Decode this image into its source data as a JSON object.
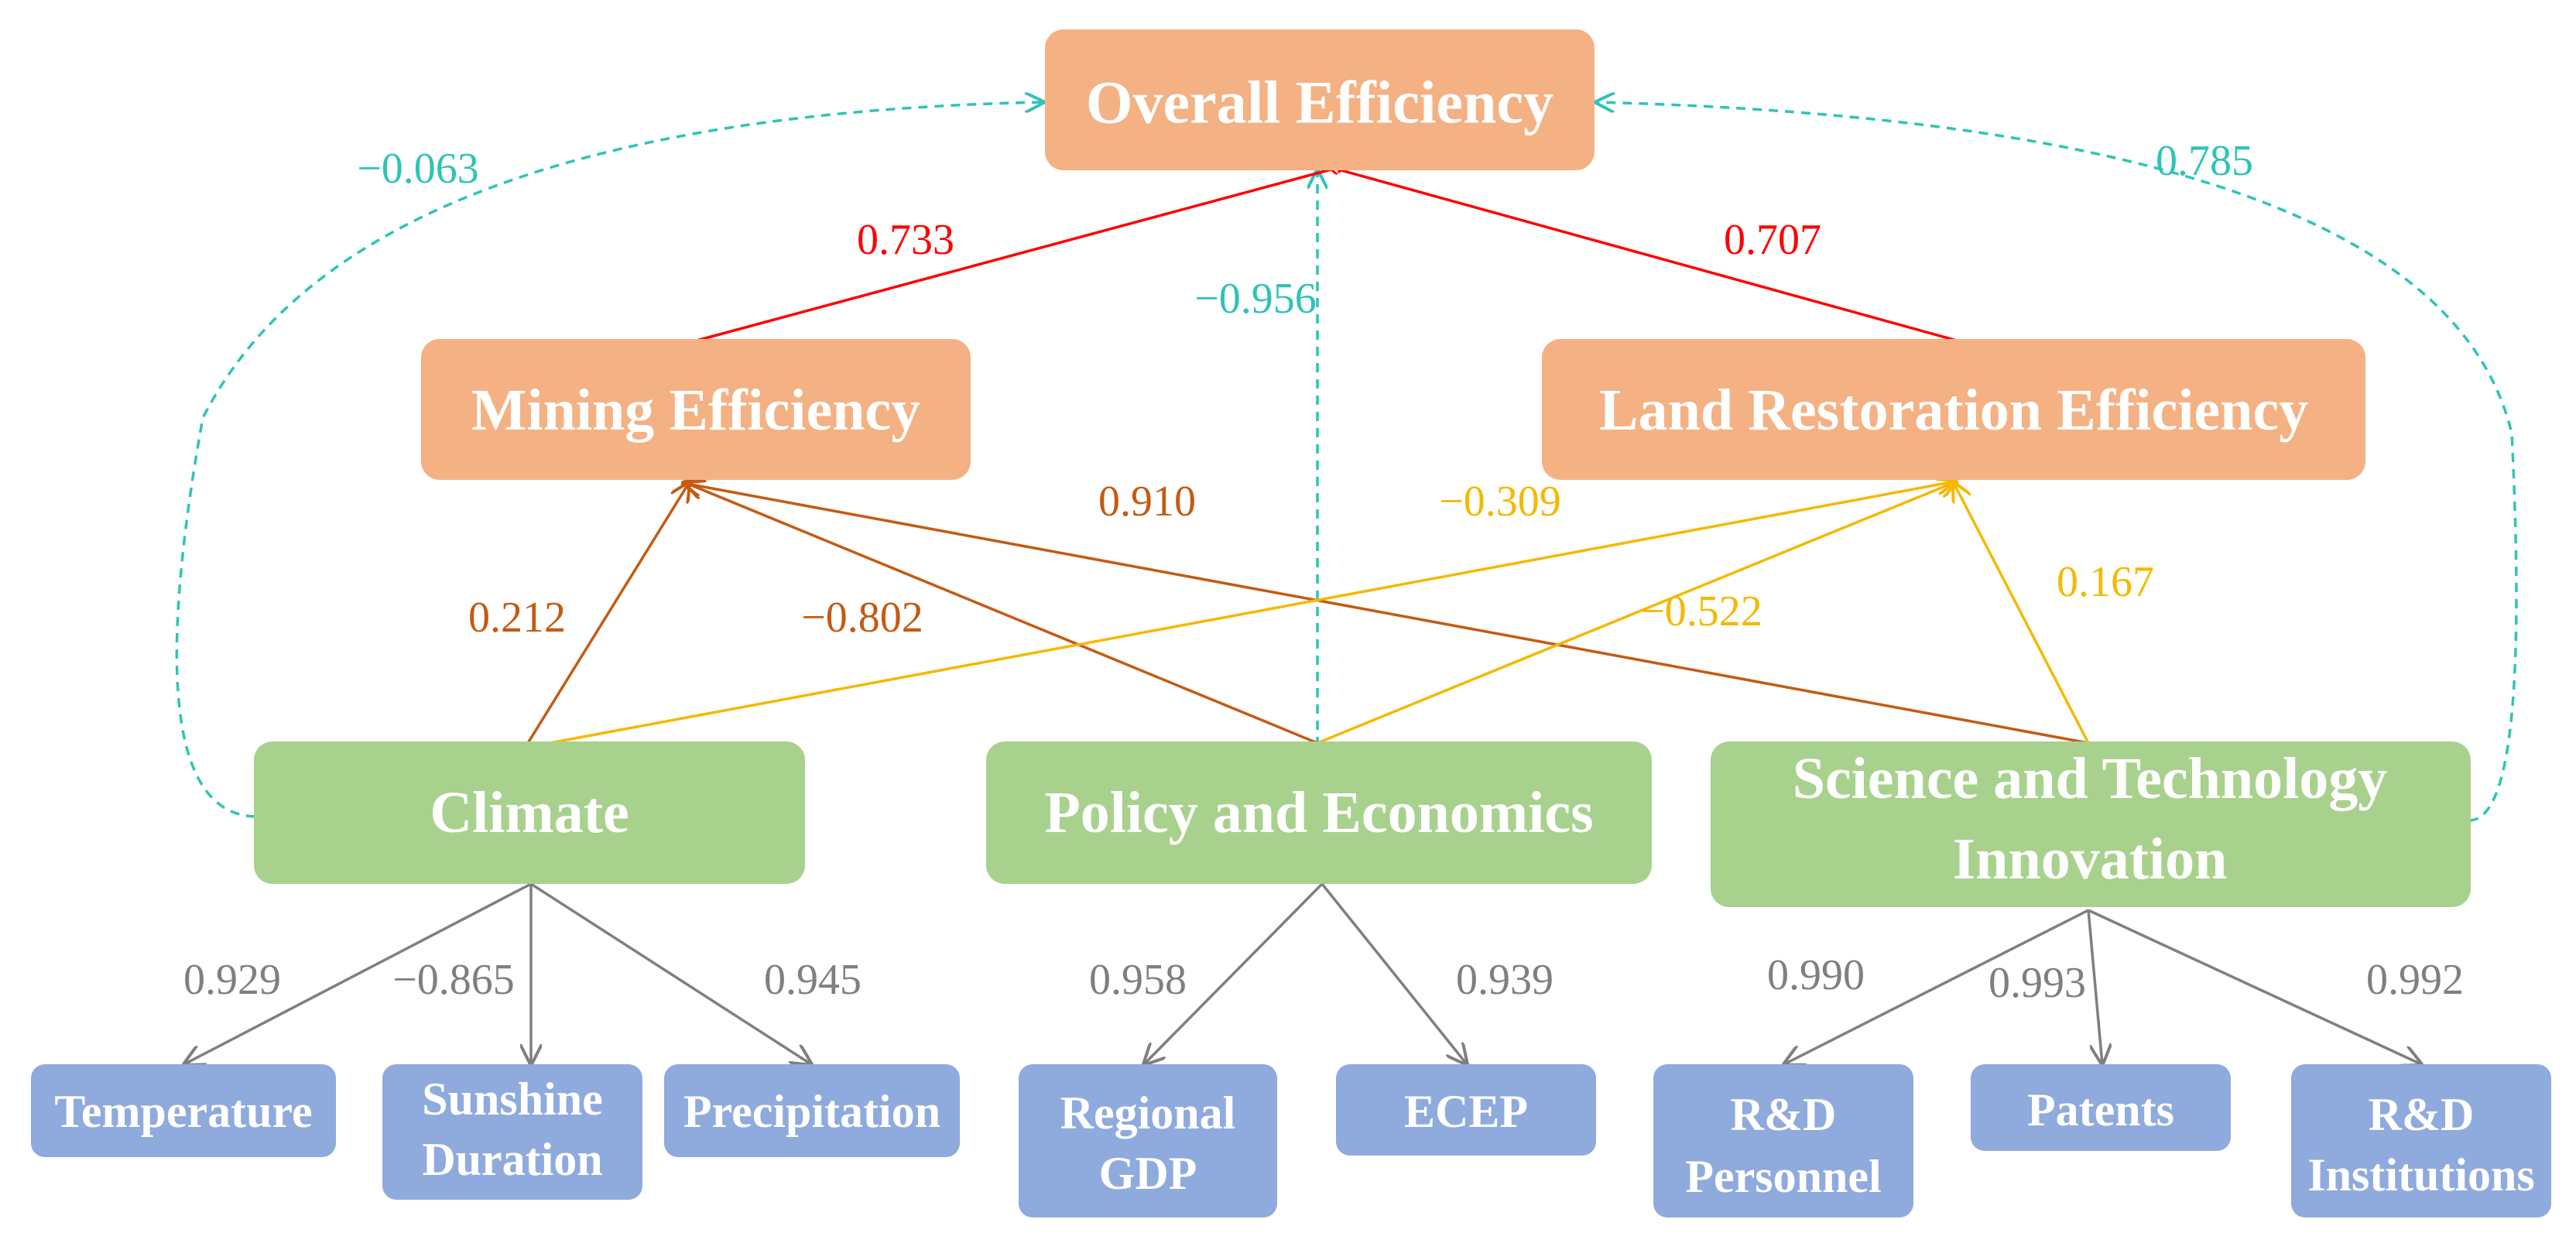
{
  "nodes": {
    "overall": "Overall Efficiency",
    "mining": "Mining Efficiency",
    "land": "Land Restoration Efficiency",
    "climate": "Climate",
    "policy": "Policy and Economics",
    "sti": [
      "Science and Technology",
      "Innovation"
    ],
    "temperature": "Temperature",
    "sunshine": [
      "Sunshine",
      "Duration"
    ],
    "precipitation": "Precipitation",
    "gdp": [
      "Regional",
      "GDP"
    ],
    "ecep": "ECEP",
    "rd_personnel": [
      "R&D",
      "Personnel"
    ],
    "patents": "Patents",
    "rd_institutions": [
      "R&D",
      "Institutions"
    ]
  },
  "coefficients": {
    "climate_overall": "−0.063",
    "sti_overall": "0.785",
    "policy_overall": "−0.956",
    "mining_overall": "0.733",
    "land_overall": "0.707",
    "climate_mining": "0.212",
    "policy_mining": "−0.802",
    "sti_mining": "0.910",
    "climate_land": "−0.309",
    "policy_land": "−0.522",
    "sti_land": "0.167",
    "climate_temperature": "0.929",
    "climate_sunshine": "−0.865",
    "climate_precipitation": "0.945",
    "policy_gdp": "0.958",
    "policy_ecep": "0.939",
    "sti_rd_personnel": "0.990",
    "sti_patents": "0.993",
    "sti_rd_institutions": "0.992"
  },
  "colors": {
    "orange_node": "#F4B183",
    "green_node": "#A9D18E",
    "blue_node": "#8FAADC",
    "red_path": "#FF0000",
    "brown_path": "#C55A11",
    "gold_path": "#F5B800",
    "teal_dashed": "#2EC4B6",
    "gray_path": "#7F7F7F"
  }
}
